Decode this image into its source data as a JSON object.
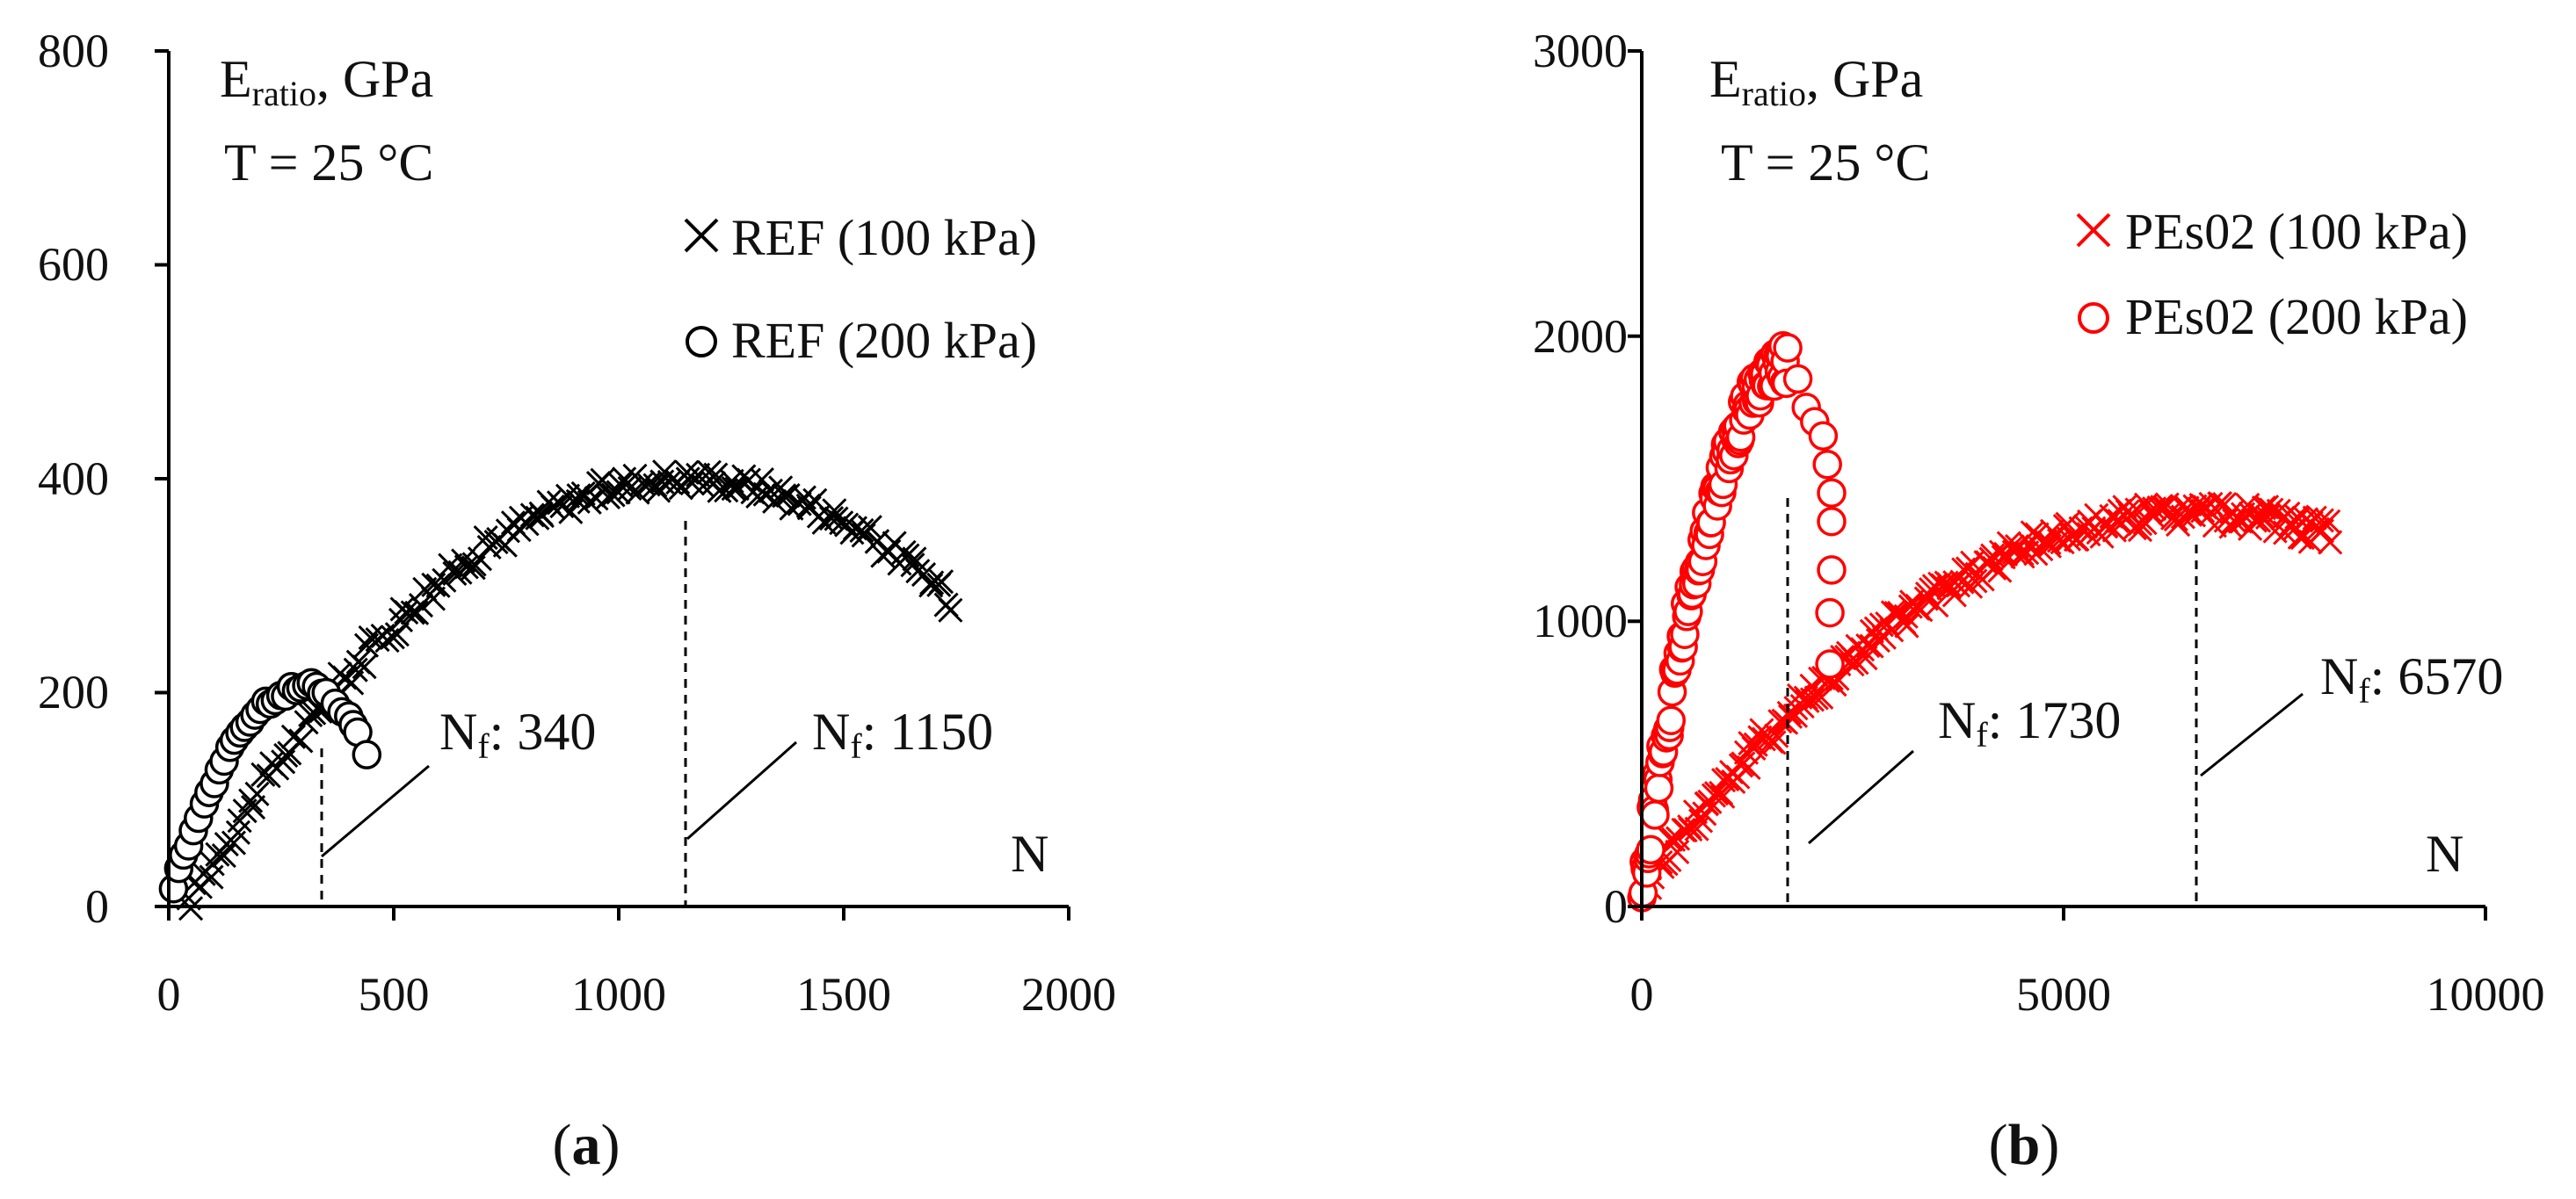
{
  "chart_data": [
    {
      "type": "scatter",
      "panel_label": "a",
      "xlabel": "N",
      "ylabel": "E",
      "ylabel_sub": "ratio",
      "ylabel_unit": ", GPa",
      "temperature_label": "T = 25 °C",
      "xlim": [
        0,
        2000
      ],
      "ylim": [
        0,
        800
      ],
      "xticks": [
        "0",
        "500",
        "1000",
        "1500",
        "2000"
      ],
      "yticks": [
        "0",
        "200",
        "400",
        "600",
        "800"
      ],
      "color": "#000000",
      "series": [
        {
          "name": "REF (100 kPa)",
          "marker": "x",
          "curve": {
            "type": "parabola",
            "peak_x": 1150,
            "peak_y": 400,
            "curvature": 0.000325,
            "x_start": 40,
            "x_end": 1740,
            "count": 170,
            "jitter": 10
          }
        },
        {
          "name": "REF (200 kPa)",
          "marker": "o",
          "curve": {
            "type": "parabola",
            "peak_x": 300,
            "peak_y": 205,
            "curvature": 0.0022,
            "x_start": 10,
            "x_end": 340,
            "count": 30,
            "jitter": 5
          },
          "tail": [
            [
              350,
              200
            ],
            [
              370,
              190
            ],
            [
              385,
              182
            ],
            [
              400,
              178
            ],
            [
              410,
              170
            ],
            [
              420,
              163
            ],
            [
              440,
              142
            ]
          ]
        }
      ],
      "annotations": [
        {
          "label": "N",
          "subscript": "f",
          "value": ": 340",
          "x": 340
        },
        {
          "label": "N",
          "subscript": "f",
          "value": ": 1150",
          "x": 1150
        }
      ]
    },
    {
      "type": "scatter",
      "panel_label": "b",
      "xlabel": "N",
      "ylabel": "E",
      "ylabel_sub": "ratio",
      "ylabel_unit": ", GPa",
      "temperature_label": "T = 25 °C",
      "xlim": [
        0,
        10000
      ],
      "ylim": [
        0,
        3000
      ],
      "xticks": [
        "0",
        "5000",
        "10000"
      ],
      "yticks": [
        "0",
        "1000",
        "2000",
        "3000"
      ],
      "color": "#ff0000",
      "series": [
        {
          "name": "PEs02 (100 kPa)",
          "marker": "x",
          "curve": {
            "type": "parabola",
            "peak_x": 6570,
            "peak_y": 1380,
            "curvature": 3.04e-05,
            "x_start": 80,
            "x_end": 8150,
            "count": 240,
            "jitter": 45
          }
        },
        {
          "name": "PEs02 (200 kPa)",
          "marker": "o",
          "curve": {
            "type": "parabola",
            "peak_x": 1730,
            "peak_y": 1900,
            "curvature": 0.00062,
            "x_start": 0,
            "x_end": 1730,
            "count": 120,
            "jitter": 70
          },
          "tail": [
            [
              1850,
              1850
            ],
            [
              1950,
              1750
            ],
            [
              2050,
              1700
            ],
            [
              2150,
              1650
            ],
            [
              2200,
              1550
            ],
            [
              2250,
              1450
            ],
            [
              2250,
              1350
            ],
            [
              2250,
              1180
            ],
            [
              2230,
              1030
            ],
            [
              2230,
              850
            ]
          ]
        }
      ],
      "annotations": [
        {
          "label": "N",
          "subscript": "f",
          "value": ": 1730",
          "x": 1730
        },
        {
          "label": "N",
          "subscript": "f",
          "value": ": 6570",
          "x": 6570
        }
      ]
    }
  ]
}
